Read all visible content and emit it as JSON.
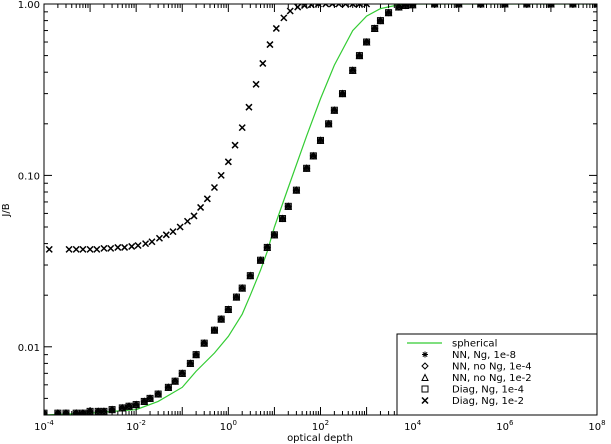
{
  "chart_data": {
    "type": "scatter",
    "title": "",
    "xlabel": "optical depth",
    "ylabel": "J/B",
    "x_scale": "log",
    "y_scale": "log",
    "xlim": [
      0.0001,
      100000000
    ],
    "ylim": [
      0.004,
      1.0
    ],
    "grid": false,
    "legend_position": "bottom-right",
    "x_ticks": [
      {
        "value": 0.0001,
        "base": "10",
        "exp": "-4"
      },
      {
        "value": 0.01,
        "base": "10",
        "exp": "-2"
      },
      {
        "value": 1,
        "base": "10",
        "exp": "0"
      },
      {
        "value": 100,
        "base": "10",
        "exp": "2"
      },
      {
        "value": 10000,
        "base": "10",
        "exp": "4"
      },
      {
        "value": 1000000,
        "base": "10",
        "exp": "6"
      },
      {
        "value": 100000000,
        "base": "10",
        "exp": "8"
      }
    ],
    "y_ticks": [
      {
        "value": 0.01,
        "label": "0.01"
      },
      {
        "value": 0.1,
        "label": "0.10"
      },
      {
        "value": 1.0,
        "label": "1.00"
      }
    ],
    "series": [
      {
        "name": "spherical",
        "style": "line",
        "color": "#33cc33"
      },
      {
        "name": "NN, Ng, 1e-8",
        "style": "asterisk"
      },
      {
        "name": "NN, no Ng, 1e-4",
        "style": "diamond"
      },
      {
        "name": "NN, no Ng, 1e-2",
        "style": "triangle"
      },
      {
        "name": "Diag, Ng, 1e-4",
        "style": "square"
      },
      {
        "name": "Diag, Ng, 1e-2",
        "style": "cross"
      }
    ],
    "spherical_curve": {
      "x": [
        0.0001,
        0.001,
        0.01,
        0.03,
        0.1,
        0.2,
        0.5,
        1,
        2,
        3,
        5,
        7,
        10,
        20,
        50,
        100,
        200,
        500,
        1000,
        2000,
        5000,
        10000,
        100000000
      ],
      "y": [
        0.004,
        0.0041,
        0.0043,
        0.0048,
        0.0058,
        0.0072,
        0.0092,
        0.0115,
        0.0155,
        0.02,
        0.028,
        0.036,
        0.05,
        0.085,
        0.17,
        0.28,
        0.44,
        0.7,
        0.85,
        0.94,
        0.99,
        1.0,
        1.0
      ]
    },
    "thick_case": {
      "x": [
        0.0001,
        0.0002,
        0.0003,
        0.0005,
        0.0007,
        0.001,
        0.0015,
        0.002,
        0.003,
        0.005,
        0.007,
        0.01,
        0.015,
        0.02,
        0.03,
        0.05,
        0.07,
        0.1,
        0.15,
        0.2,
        0.3,
        0.5,
        0.7,
        1,
        1.5,
        2,
        3,
        5,
        7,
        10,
        15,
        20,
        30,
        50,
        70,
        100,
        150,
        200,
        300,
        500,
        700,
        1000,
        1500,
        2000,
        3000,
        5000,
        7000,
        10000,
        30000,
        100000,
        300000,
        1000000,
        3000000,
        10000000,
        30000000,
        100000000
      ],
      "y": [
        0.0041,
        0.0041,
        0.0041,
        0.0041,
        0.0041,
        0.0042,
        0.0042,
        0.0042,
        0.0043,
        0.0044,
        0.0045,
        0.0046,
        0.0048,
        0.005,
        0.0053,
        0.0058,
        0.0063,
        0.007,
        0.008,
        0.009,
        0.0105,
        0.0125,
        0.0145,
        0.0165,
        0.0195,
        0.022,
        0.026,
        0.032,
        0.038,
        0.045,
        0.056,
        0.066,
        0.082,
        0.11,
        0.13,
        0.16,
        0.2,
        0.24,
        0.3,
        0.41,
        0.5,
        0.6,
        0.72,
        0.8,
        0.89,
        0.96,
        0.98,
        0.99,
        1.0,
        1.0,
        1.0,
        1.0,
        1.0,
        1.0,
        1.0,
        1.0
      ]
    },
    "diag_1e-2": {
      "x": [
        0.00013,
        0.00035,
        0.0005,
        0.0007,
        0.001,
        0.0014,
        0.002,
        0.0028,
        0.004,
        0.0056,
        0.008,
        0.011,
        0.016,
        0.022,
        0.032,
        0.045,
        0.063,
        0.09,
        0.13,
        0.18,
        0.25,
        0.35,
        0.5,
        0.7,
        1,
        1.4,
        2,
        2.8,
        4,
        5.6,
        8,
        11,
        16,
        22,
        32,
        45,
        63,
        90,
        130,
        180,
        250,
        350,
        500,
        700,
        1000
      ],
      "y": [
        0.037,
        0.037,
        0.037,
        0.037,
        0.037,
        0.037,
        0.0375,
        0.0375,
        0.038,
        0.038,
        0.0385,
        0.039,
        0.04,
        0.041,
        0.043,
        0.045,
        0.047,
        0.05,
        0.054,
        0.058,
        0.065,
        0.073,
        0.085,
        0.1,
        0.12,
        0.15,
        0.19,
        0.25,
        0.34,
        0.45,
        0.58,
        0.72,
        0.83,
        0.91,
        0.96,
        0.98,
        0.99,
        1.0,
        1.0,
        1.0,
        1.0,
        1.0,
        1.0,
        1.0,
        1.0
      ]
    }
  }
}
